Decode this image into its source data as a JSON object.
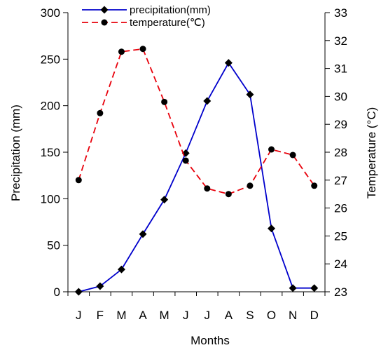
{
  "chart_data": {
    "type": "line",
    "categories": [
      "J",
      "F",
      "M",
      "A",
      "M",
      "J",
      "J",
      "A",
      "S",
      "O",
      "N",
      "D"
    ],
    "xlabel": "Months",
    "ylabel_left": "Precipitation (mm)",
    "ylabel_right": "Temperature (°C)",
    "ylim_left": [
      0,
      300
    ],
    "ylim_right": [
      23,
      33
    ],
    "yticks_left": [
      0,
      50,
      100,
      150,
      200,
      250,
      300
    ],
    "yticks_right": [
      23,
      24,
      25,
      26,
      27,
      28,
      29,
      30,
      31,
      32,
      33
    ],
    "grid": false,
    "legend_position": "top-center",
    "series": [
      {
        "name": "precipitation(mm)",
        "axis": "left",
        "color": "#0000cc",
        "line_style": "solid",
        "marker": "diamond",
        "values": [
          0,
          6,
          24,
          62,
          99,
          149,
          205,
          246,
          212,
          68,
          4,
          4
        ]
      },
      {
        "name": "temperature(℃)",
        "axis": "right",
        "color": "#e8000b",
        "line_style": "dashed",
        "marker": "circle",
        "values": [
          27.0,
          29.4,
          31.6,
          31.7,
          29.8,
          27.7,
          26.7,
          26.5,
          26.8,
          28.1,
          27.9,
          26.8
        ]
      }
    ]
  }
}
